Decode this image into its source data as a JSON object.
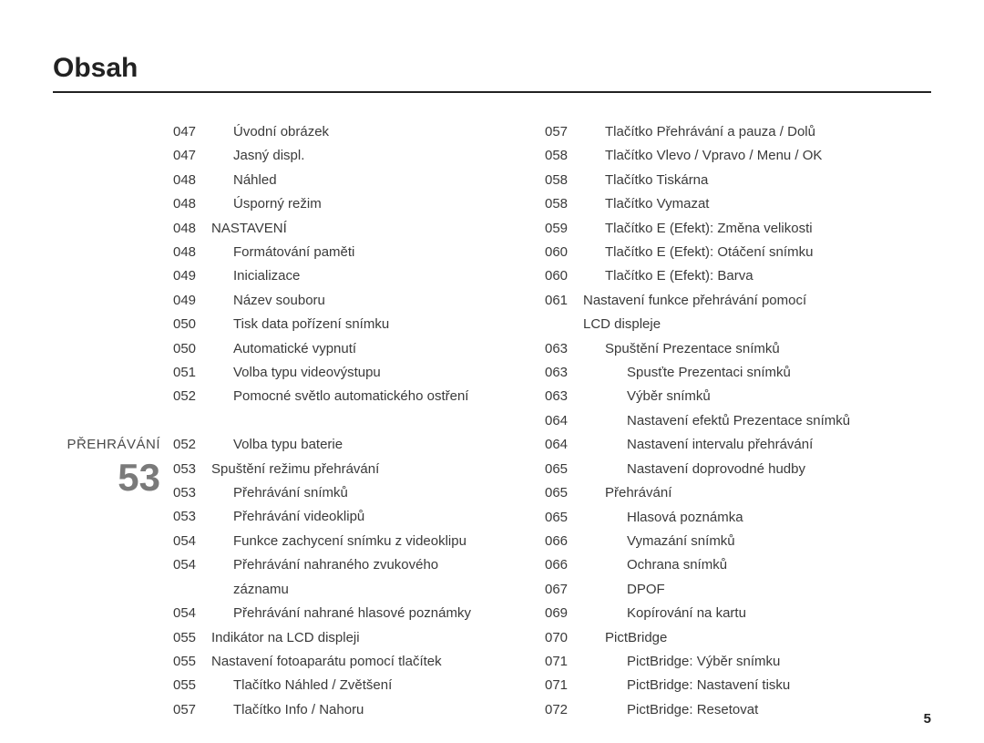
{
  "title": "Obsah",
  "page_number": "5",
  "section": {
    "name": "PŘEHRÁVÁNÍ",
    "number": "53",
    "anchor_index": 12
  },
  "left_column": [
    {
      "pg": "047",
      "txt": "Úvodní obrázek",
      "indent": 1
    },
    {
      "pg": "047",
      "txt": "Jasný displ.",
      "indent": 1
    },
    {
      "pg": "048",
      "txt": "Náhled",
      "indent": 1
    },
    {
      "pg": "048",
      "txt": "Úsporný režim",
      "indent": 1
    },
    {
      "pg": "048",
      "txt": "NASTAVENÍ",
      "indent": 0
    },
    {
      "pg": "048",
      "txt": "Formátování paměti",
      "indent": 1
    },
    {
      "pg": "049",
      "txt": "Inicializace",
      "indent": 1
    },
    {
      "pg": "049",
      "txt": "Název souboru",
      "indent": 1
    },
    {
      "pg": "050",
      "txt": "Tisk data pořízení snímku",
      "indent": 1
    },
    {
      "pg": "050",
      "txt": "Automatické vypnutí",
      "indent": 1
    },
    {
      "pg": "051",
      "txt": "Volba typu videovýstupu",
      "indent": 1
    },
    {
      "pg": "052",
      "txt": "Pomocné světlo automatického ostření",
      "indent": 1
    },
    {
      "pg": "052",
      "txt": "Volba typu baterie",
      "indent": 1
    },
    {
      "pg": "053",
      "txt": "Spuštění režimu přehrávání",
      "indent": 0
    },
    {
      "pg": "053",
      "txt": "Přehrávání snímků",
      "indent": 1
    },
    {
      "pg": "053",
      "txt": "Přehrávání videoklipů",
      "indent": 1
    },
    {
      "pg": "054",
      "txt": "Funkce zachycení snímku z videoklipu",
      "indent": 1
    },
    {
      "pg": "054",
      "txt": "Přehrávání nahraného zvukového",
      "indent": 1
    },
    {
      "pg": "",
      "txt": "záznamu",
      "indent": 1,
      "cont": true
    },
    {
      "pg": "054",
      "txt": "Přehrávání nahrané hlasové poznámky",
      "indent": 1
    },
    {
      "pg": "055",
      "txt": "Indikátor na LCD displeji",
      "indent": 0
    },
    {
      "pg": "055",
      "txt": "Nastavení fotoaparátu pomocí tlačítek",
      "indent": 0
    },
    {
      "pg": "055",
      "txt": "Tlačítko Náhled / Zvětšení",
      "indent": 1
    },
    {
      "pg": "057",
      "txt": "Tlačítko Info / Nahoru",
      "indent": 1
    }
  ],
  "right_column": [
    {
      "pg": "057",
      "txt": "Tlačítko Přehrávání a pauza / Dolů",
      "indent": 1
    },
    {
      "pg": "058",
      "txt": "Tlačítko Vlevo / Vpravo / Menu / OK",
      "indent": 1
    },
    {
      "pg": "058",
      "txt": "Tlačítko Tiskárna",
      "indent": 1
    },
    {
      "pg": "058",
      "txt": "Tlačítko Vymazat",
      "indent": 1
    },
    {
      "pg": "059",
      "txt": "Tlačítko E (Efekt): Změna velikosti",
      "indent": 1
    },
    {
      "pg": "060",
      "txt": "Tlačítko E (Efekt): Otáčení snímku",
      "indent": 1
    },
    {
      "pg": "060",
      "txt": "Tlačítko E (Efekt): Barva",
      "indent": 1
    },
    {
      "pg": "061",
      "txt": "Nastavení funkce přehrávání pomocí",
      "indent": 0
    },
    {
      "pg": "",
      "txt": "LCD displeje",
      "indent": 0,
      "cont": true
    },
    {
      "pg": "063",
      "txt": "Spuštění Prezentace snímků",
      "indent": 1
    },
    {
      "pg": "063",
      "txt": "Spusťte Prezentaci snímků",
      "indent": 2
    },
    {
      "pg": "063",
      "txt": "Výběr snímků",
      "indent": 2
    },
    {
      "pg": "064",
      "txt": "Nastavení efektů Prezentace snímků",
      "indent": 2
    },
    {
      "pg": "064",
      "txt": "Nastavení intervalu přehrávání",
      "indent": 2
    },
    {
      "pg": "065",
      "txt": "Nastavení doprovodné hudby",
      "indent": 2
    },
    {
      "pg": "065",
      "txt": "Přehrávání",
      "indent": 1
    },
    {
      "pg": "065",
      "txt": "Hlasová poznámka",
      "indent": 2
    },
    {
      "pg": "066",
      "txt": "Vymazání snímků",
      "indent": 2
    },
    {
      "pg": "066",
      "txt": "Ochrana snímků",
      "indent": 2
    },
    {
      "pg": "067",
      "txt": "DPOF",
      "indent": 2
    },
    {
      "pg": "069",
      "txt": "Kopírování na kartu",
      "indent": 2
    },
    {
      "pg": "070",
      "txt": "PictBridge",
      "indent": 1
    },
    {
      "pg": "071",
      "txt": "PictBridge: Výběr snímku",
      "indent": 2
    },
    {
      "pg": "071",
      "txt": "PictBridge: Nastavení tisku",
      "indent": 2
    },
    {
      "pg": "072",
      "txt": "PictBridge: Resetovat",
      "indent": 2
    }
  ]
}
